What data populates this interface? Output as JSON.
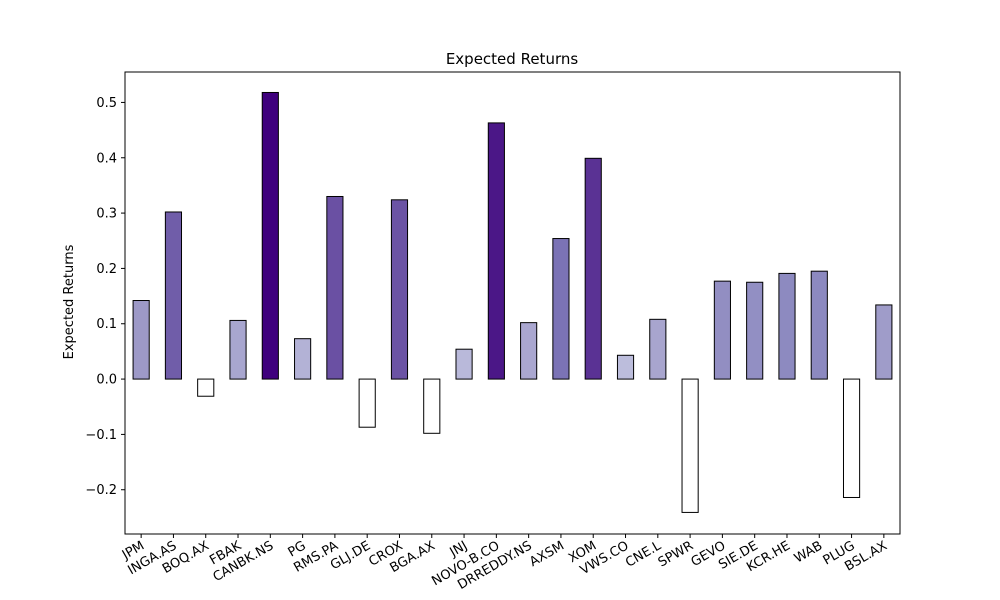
{
  "chart_data": {
    "type": "bar",
    "title": "Expected Returns",
    "xlabel": "",
    "ylabel": "Expected Returns",
    "ylim": [
      -0.28,
      0.555
    ],
    "yticks": [
      -0.2,
      -0.1,
      0.0,
      0.1,
      0.2,
      0.3,
      0.4,
      0.5
    ],
    "ytick_labels": [
      "−0.2",
      "−0.1",
      "0.0",
      "0.1",
      "0.2",
      "0.3",
      "0.4",
      "0.5"
    ],
    "grid": false,
    "colormap": "Purples",
    "categories": [
      "JPM",
      "INGA.AS",
      "BOQ.AX",
      "FBAK",
      "CANBK.NS",
      "PG",
      "RMS.PA",
      "GLJ.DE",
      "CROX",
      "BGA.AX",
      "JNJ",
      "NOVO-B.CO",
      "DRREDDY.NS",
      "AXSM",
      "XOM",
      "VWS.CO",
      "CNE.L",
      "SPWR",
      "GEVO",
      "SIE.DE",
      "KCR.HE",
      "WAB",
      "PLUG",
      "BSL.AX"
    ],
    "values": [
      0.142,
      0.302,
      -0.031,
      0.106,
      0.518,
      0.073,
      0.33,
      -0.087,
      0.324,
      -0.098,
      0.054,
      0.463,
      0.102,
      0.254,
      0.399,
      0.043,
      0.108,
      -0.241,
      0.177,
      0.175,
      0.191,
      0.195,
      -0.214,
      0.134
    ]
  }
}
